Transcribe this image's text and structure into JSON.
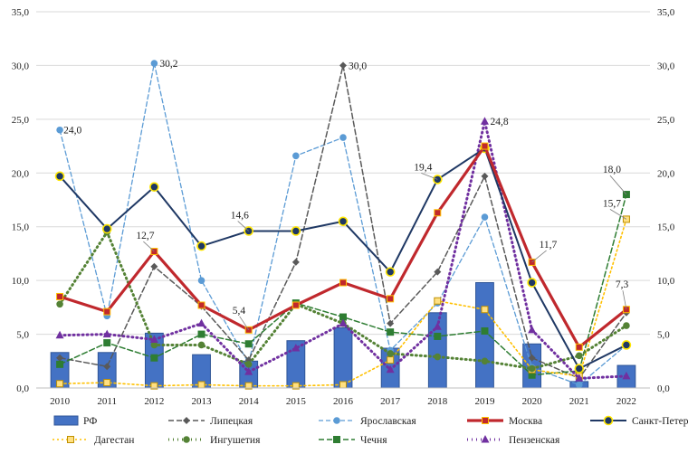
{
  "chart_data": {
    "type": "bar+line",
    "title": "",
    "xlabel": "",
    "ylabel": "",
    "ylim": [
      0,
      35
    ],
    "yticks": [
      "0,0",
      "5,0",
      "10,0",
      "15,0",
      "20,0",
      "25,0",
      "30,0",
      "35,0"
    ],
    "y2ticks": [
      "0,0",
      "5,0",
      "10,0",
      "15,0",
      "20,0",
      "25,0",
      "30,0",
      "35,0"
    ],
    "categories": [
      "2010",
      "2011",
      "2012",
      "2013",
      "2014",
      "2015",
      "2016",
      "2017",
      "2018",
      "2019",
      "2020",
      "2021",
      "2022"
    ],
    "grid": true,
    "legend_position": "bottom",
    "series": [
      {
        "name": "РФ",
        "kind": "bar",
        "color": "#4472c4",
        "values": [
          3.3,
          3.3,
          5.1,
          3.1,
          2.5,
          4.4,
          5.6,
          3.7,
          7.0,
          9.8,
          4.1,
          0.6,
          2.1
        ]
      },
      {
        "name": "Липецкая",
        "kind": "line",
        "style": "dash",
        "marker": "diamond",
        "color": "#595959",
        "values": [
          2.8,
          2.0,
          11.3,
          7.6,
          2.6,
          11.7,
          30.0,
          6.0,
          10.8,
          19.7,
          2.8,
          0.9,
          7.0
        ]
      },
      {
        "name": "Ярославская",
        "kind": "line",
        "style": "dash-blue",
        "marker": "circle",
        "color": "#5b9bd5",
        "values": [
          24.0,
          6.7,
          30.2,
          10.0,
          2.3,
          21.6,
          23.3,
          3.5,
          7.9,
          15.9,
          1.9,
          0.3,
          4.0
        ]
      },
      {
        "name": "Москва",
        "kind": "line",
        "style": "solid-thick",
        "marker": "square",
        "color": "#c0282d",
        "values": [
          8.5,
          7.1,
          12.7,
          7.7,
          5.4,
          7.7,
          9.8,
          8.3,
          16.3,
          22.5,
          11.7,
          3.8,
          7.3
        ]
      },
      {
        "name": "Санкт-Петербург",
        "kind": "line",
        "style": "solid",
        "marker": "circle-yellow",
        "color": "#1f3864",
        "values": [
          19.7,
          14.8,
          18.7,
          13.2,
          14.6,
          14.6,
          15.5,
          10.8,
          19.4,
          22.3,
          9.8,
          1.8,
          4.0
        ]
      },
      {
        "name": "Дагестан",
        "kind": "line",
        "style": "dot",
        "marker": "square-yellow",
        "color": "#ffc000",
        "values": [
          0.4,
          0.5,
          0.2,
          0.3,
          0.2,
          0.2,
          0.3,
          2.6,
          8.1,
          7.3,
          1.7,
          1.1,
          15.7
        ]
      },
      {
        "name": "Ингушетия",
        "kind": "line",
        "style": "dot-thick",
        "marker": "circle",
        "color": "#548235",
        "values": [
          7.8,
          14.5,
          4.0,
          4.0,
          2.2,
          7.8,
          6.0,
          3.2,
          2.9,
          2.5,
          1.8,
          3.0,
          5.8
        ]
      },
      {
        "name": "Чечня",
        "kind": "line",
        "style": "dash",
        "marker": "square",
        "color": "#2e7d32",
        "values": [
          2.2,
          4.2,
          2.8,
          5.0,
          4.1,
          7.9,
          6.6,
          5.2,
          4.8,
          5.3,
          1.2,
          1.6,
          18.0
        ]
      },
      {
        "name": "Пензенская",
        "kind": "line",
        "style": "dot-thick",
        "marker": "triangle",
        "color": "#7030a0",
        "values": [
          4.9,
          5.0,
          4.5,
          6.0,
          1.5,
          3.7,
          6.0,
          1.7,
          5.7,
          24.8,
          5.4,
          0.9,
          1.1
        ]
      }
    ],
    "data_labels": [
      {
        "text": "24,0",
        "series": "Ярославская",
        "x": "2010",
        "y": 24.0
      },
      {
        "text": "30,2",
        "series": "Ярославская",
        "x": "2012",
        "y": 30.2
      },
      {
        "text": "30,0",
        "series": "Липецкая",
        "x": "2016",
        "y": 30.0
      },
      {
        "text": "12,7",
        "series": "Москва",
        "x": "2012",
        "y": 12.7
      },
      {
        "text": "14,6",
        "series": "Санкт-Петербург",
        "x": "2014",
        "y": 14.6
      },
      {
        "text": "5,4",
        "series": "Москва",
        "x": "2014",
        "y": 5.4
      },
      {
        "text": "19,4",
        "series": "Санкт-Петербург",
        "x": "2018",
        "y": 19.4
      },
      {
        "text": "24,8",
        "series": "Пензенская",
        "x": "2019",
        "y": 24.8
      },
      {
        "text": "11,7",
        "series": "Москва",
        "x": "2020",
        "y": 11.7
      },
      {
        "text": "18,0",
        "series": "Чечня",
        "x": "2022",
        "y": 18.0
      },
      {
        "text": "15,7",
        "series": "Дагестан",
        "x": "2022",
        "y": 15.7
      },
      {
        "text": "7,3",
        "series": "Москва",
        "x": "2022",
        "y": 7.3
      }
    ]
  }
}
